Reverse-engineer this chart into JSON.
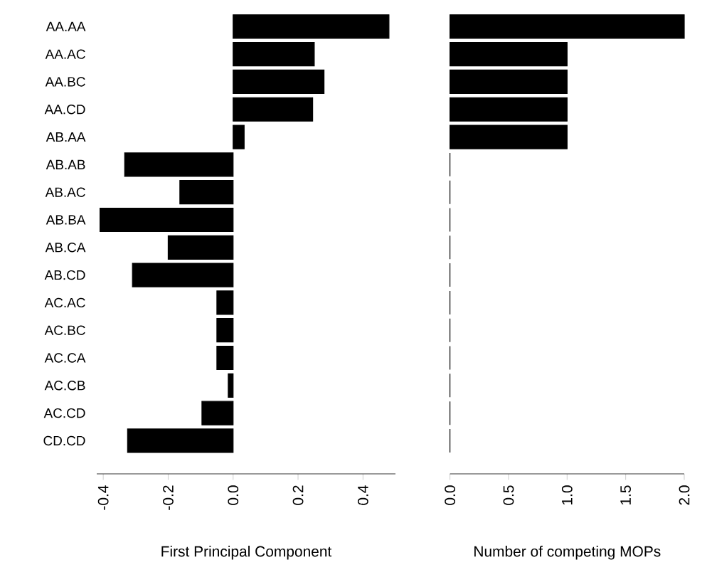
{
  "chart_data": [
    {
      "type": "bar",
      "orientation": "horizontal",
      "xlabel": "First Principal Component",
      "categories": [
        "AA.AA",
        "AA.AC",
        "AA.BC",
        "AA.CD",
        "AB.AA",
        "AB.AB",
        "AB.AC",
        "AB.BA",
        "AB.CA",
        "AB.CD",
        "AC.AC",
        "AC.BC",
        "AC.CA",
        "AC.CB",
        "AC.CD",
        "CD.CD"
      ],
      "values": [
        0.48,
        0.25,
        0.28,
        0.245,
        0.034,
        -0.334,
        -0.164,
        -0.41,
        -0.2,
        -0.31,
        -0.05,
        -0.05,
        -0.05,
        -0.015,
        -0.096,
        -0.325
      ],
      "color": "#000000",
      "xlim": [
        -0.42,
        0.5
      ],
      "xticks": [
        {
          "value": -0.4,
          "label": "-0.4"
        },
        {
          "value": -0.2,
          "label": "-0.2"
        },
        {
          "value": 0,
          "label": "0.0"
        },
        {
          "value": 0.2,
          "label": "0.2"
        },
        {
          "value": 0.4,
          "label": "0.4"
        }
      ]
    },
    {
      "type": "bar",
      "orientation": "horizontal",
      "xlabel": "Number of competing MOPs",
      "tick_labels": "x",
      "categories": [
        null,
        null,
        null,
        null,
        null,
        null,
        null,
        null,
        null,
        null,
        null,
        null,
        null,
        null,
        null,
        null
      ],
      "values": [
        2,
        1,
        1,
        1,
        1,
        0,
        0,
        0,
        0,
        0,
        0,
        0,
        0,
        0,
        0,
        0
      ],
      "color": "#000000",
      "xlim": [
        0,
        2
      ],
      "xticks": [
        {
          "value": 0,
          "label": "0.0"
        },
        {
          "value": 0.5,
          "label": "0.5"
        },
        {
          "value": 1,
          "label": "1.0"
        },
        {
          "value": 1.5,
          "label": "1.5"
        },
        {
          "value": 2,
          "label": "2.0"
        }
      ]
    }
  ]
}
